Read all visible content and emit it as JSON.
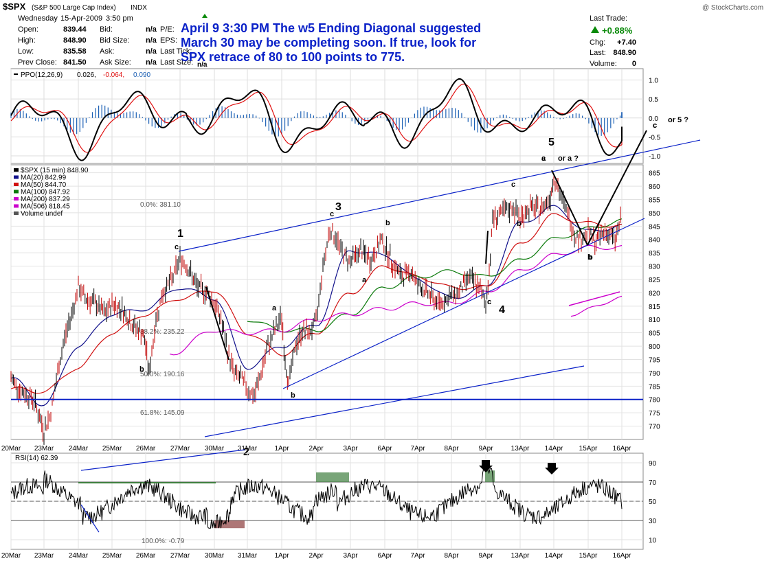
{
  "header": {
    "symbol": "$SPX",
    "name": "(S&P 500 Large Cap Index)",
    "exchange": "INDX",
    "credit": "@ StockCharts.com",
    "date": "Wednesday",
    "date2": "15-Apr-2009",
    "time": "3:50 pm",
    "fields": [
      {
        "label": "Open:",
        "value": "839.44"
      },
      {
        "label": "High:",
        "value": "848.90"
      },
      {
        "label": "Low:",
        "value": "835.58"
      },
      {
        "label": "Prev Close:",
        "value": "841.50"
      }
    ],
    "fields2": [
      {
        "label": "Bid:",
        "value": "n/a"
      },
      {
        "label": "Bid Size:",
        "value": "n/a"
      },
      {
        "label": "Ask:",
        "value": "n/a"
      },
      {
        "label": "Ask Size:",
        "value": "n/a"
      }
    ],
    "fields3": [
      {
        "label": "P/E:"
      },
      {
        "label": "EPS:"
      },
      {
        "label": "Last Tick:"
      },
      {
        "label": "Last Size:",
        "value": "n/a"
      }
    ],
    "last_trade_label": "Last Trade:",
    "change_pct": "+0.88%",
    "chg_label": "Chg:",
    "chg_value": "+7.40",
    "last_label": "Last:",
    "last_value": "848.90",
    "volume_label": "Volume:",
    "volume_value": "0"
  },
  "annotation_note": [
    "April 9 3:30 PM The w5 Ending Diagonal suggested",
    "March 30 may be completing soon. If true, look for",
    "SPX retrace of 80 to 100 points  to 775."
  ],
  "chart_data": [
    {
      "type": "line",
      "panel": "ppo",
      "title": "PPO(12,26,9) 0.026, -0.064, 0.090",
      "legend": [
        "PPO(12,26,9)",
        "0.026,",
        "-0.064,",
        "0.090"
      ],
      "ylim": [
        -1.2,
        1.3
      ],
      "yticks": [
        "1.0",
        "0.5",
        "0.0",
        "-0.5",
        "-1.0"
      ],
      "ytick_values": [
        1.0,
        0.5,
        0.0,
        -0.5,
        -1.0
      ],
      "series": [
        {
          "name": "PPO",
          "color": "#000000"
        },
        {
          "name": "Signal",
          "color": "#e01010"
        },
        {
          "name": "Histogram",
          "color": "#1a5fb4"
        }
      ]
    },
    {
      "type": "line",
      "panel": "price",
      "title": "$SPX (15 min) 848.90",
      "legend": [
        {
          "label": "$SPX (15 min) 848.90",
          "color": "#000000"
        },
        {
          "label": "MA(20) 842.99",
          "color": "#10108a"
        },
        {
          "label": "MA(50) 844.70",
          "color": "#d01010"
        },
        {
          "label": "MA(100) 847.92",
          "color": "#0a7a0a"
        },
        {
          "label": "MA(200) 837.29",
          "color": "#cc00cc"
        },
        {
          "label": "MA(506) 818.45",
          "color": "#cc00cc"
        },
        {
          "label": "Volume undef",
          "color": "#555555"
        }
      ],
      "ylim": [
        765,
        868
      ],
      "yticks": [
        "865",
        "860",
        "855",
        "850",
        "845",
        "840",
        "835",
        "830",
        "825",
        "820",
        "815",
        "810",
        "805",
        "800",
        "795",
        "790",
        "785",
        "780",
        "775",
        "770"
      ],
      "ytick_values": [
        865,
        860,
        855,
        850,
        845,
        840,
        835,
        830,
        825,
        820,
        815,
        810,
        805,
        800,
        795,
        790,
        785,
        780,
        775,
        770
      ],
      "x_categories": [
        "20Mar",
        "23Mar",
        "24Mar",
        "25Mar",
        "26Mar",
        "27Mar",
        "30Mar",
        "31Mar",
        "1Apr",
        "2Apr",
        "3Apr",
        "6Apr",
        "7Apr",
        "8Apr",
        "9Apr",
        "13Apr",
        "14Apr",
        "15Apr",
        "16Apr"
      ],
      "price_path": [
        [
          0,
          788
        ],
        [
          0.3,
          783
        ],
        [
          0.7,
          780
        ],
        [
          0.9,
          772
        ],
        [
          1.0,
          768
        ],
        [
          1.2,
          775
        ],
        [
          1.4,
          790
        ],
        [
          1.6,
          803
        ],
        [
          1.8,
          812
        ],
        [
          2.0,
          822
        ],
        [
          2.2,
          818
        ],
        [
          2.5,
          816
        ],
        [
          2.8,
          812
        ],
        [
          3.0,
          816
        ],
        [
          3.3,
          814
        ],
        [
          3.6,
          808
        ],
        [
          3.9,
          805
        ],
        [
          4.0,
          800
        ],
        [
          4.1,
          790
        ],
        [
          4.3,
          810
        ],
        [
          4.5,
          820
        ],
        [
          4.8,
          826
        ],
        [
          5.0,
          833
        ],
        [
          5.2,
          830
        ],
        [
          5.5,
          822
        ],
        [
          5.8,
          820
        ],
        [
          6.0,
          816
        ],
        [
          6.2,
          810
        ],
        [
          6.4,
          798
        ],
        [
          6.6,
          790
        ],
        [
          6.8,
          788
        ],
        [
          7.0,
          784
        ],
        [
          7.2,
          781
        ],
        [
          7.4,
          790
        ],
        [
          7.6,
          800
        ],
        [
          7.8,
          806
        ],
        [
          8.0,
          811
        ],
        [
          8.1,
          794
        ],
        [
          8.2,
          786
        ],
        [
          8.4,
          800
        ],
        [
          8.6,
          806
        ],
        [
          8.8,
          805
        ],
        [
          9.0,
          809
        ],
        [
          9.2,
          830
        ],
        [
          9.4,
          844
        ],
        [
          9.6,
          840
        ],
        [
          9.8,
          834
        ],
        [
          10.0,
          832
        ],
        [
          10.3,
          836
        ],
        [
          10.6,
          832
        ],
        [
          10.9,
          840
        ],
        [
          11.2,
          832
        ],
        [
          11.5,
          826
        ],
        [
          11.8,
          828
        ],
        [
          12.0,
          823
        ],
        [
          12.3,
          820
        ],
        [
          12.6,
          816
        ],
        [
          12.9,
          818
        ],
        [
          13.2,
          820
        ],
        [
          13.5,
          826
        ],
        [
          13.8,
          822
        ],
        [
          14.0,
          816
        ],
        [
          14.1,
          828
        ],
        [
          14.2,
          848
        ],
        [
          14.5,
          850
        ],
        [
          14.8,
          852
        ],
        [
          15.0,
          848
        ],
        [
          15.3,
          852
        ],
        [
          15.6,
          851
        ],
        [
          15.9,
          856
        ],
        [
          16.0,
          864
        ],
        [
          16.2,
          856
        ],
        [
          16.4,
          850
        ],
        [
          16.6,
          842
        ],
        [
          16.8,
          840
        ],
        [
          17.0,
          843
        ],
        [
          17.2,
          839
        ],
        [
          17.5,
          843
        ],
        [
          17.8,
          840
        ],
        [
          18.0,
          849
        ]
      ],
      "moving_averages": [
        {
          "name": "MA(20)",
          "color": "#10108a",
          "values": [
            [
              0,
              788
            ],
            [
              1,
              778
            ],
            [
              2,
              800
            ],
            [
              3,
              812
            ],
            [
              4,
              814
            ],
            [
              5,
              822
            ],
            [
              6,
              818
            ],
            [
              7,
              792
            ],
            [
              8,
              800
            ],
            [
              9,
              808
            ],
            [
              10,
              836
            ],
            [
              11,
              834
            ],
            [
              12,
              825
            ],
            [
              13,
              818
            ],
            [
              14,
              822
            ],
            [
              15,
              846
            ],
            [
              16,
              852
            ],
            [
              17,
              843
            ],
            [
              18,
              845
            ]
          ]
        },
        {
          "name": "MA(50)",
          "color": "#d01010",
          "values": [
            [
              0,
              784
            ],
            [
              1,
              783
            ],
            [
              2,
              792
            ],
            [
              3,
              805
            ],
            [
              4,
              812
            ],
            [
              5,
              818
            ],
            [
              6,
              821
            ],
            [
              7,
              805
            ],
            [
              8,
              797
            ],
            [
              9,
              805
            ],
            [
              10,
              820
            ],
            [
              11,
              830
            ],
            [
              12,
              826
            ],
            [
              13,
              822
            ],
            [
              14,
              822
            ],
            [
              15,
              838
            ],
            [
              16,
              849
            ],
            [
              17,
              846
            ],
            [
              18,
              845
            ]
          ]
        },
        {
          "name": "MA(100)",
          "color": "#0a7a0a",
          "values": [
            [
              7,
              810
            ],
            [
              8,
              806
            ],
            [
              9,
              806
            ],
            [
              10,
              812
            ],
            [
              11,
              822
            ],
            [
              12,
              826
            ],
            [
              13,
              828
            ],
            [
              14,
              826
            ],
            [
              15,
              832
            ],
            [
              16,
              840
            ],
            [
              17,
              844
            ],
            [
              18,
              847
            ]
          ]
        },
        {
          "name": "MA(200)",
          "color": "#cc00cc",
          "values": [
            [
              4.7,
              797
            ],
            [
              6,
              806
            ],
            [
              7,
              805
            ],
            [
              8,
              806
            ],
            [
              9,
              810
            ],
            [
              10,
              812
            ],
            [
              11,
              814
            ],
            [
              12,
              816
            ],
            [
              13,
              816
            ],
            [
              14,
              820
            ],
            [
              15,
              828
            ],
            [
              16,
              834
            ],
            [
              17,
              837
            ],
            [
              18,
              837
            ]
          ]
        },
        {
          "name": "MA(506)",
          "color": "#cc00cc",
          "values": [
            [
              16.5,
              812
            ],
            [
              18,
              818
            ]
          ]
        }
      ],
      "fib_labels": [
        "0.0%: 381.10",
        "38.2%: 235.22",
        "50.0%: 190.16",
        "61.8%: 145.09",
        "100.0%: -0.79"
      ],
      "wave_labels": [
        "1",
        "2",
        "3",
        "4",
        "5",
        "or 5 ?",
        "or a ?"
      ],
      "sub_labels": [
        "c",
        "b",
        "c",
        "b",
        "a",
        "a",
        "b",
        "c",
        "b",
        "c",
        "a",
        "b",
        "c",
        "b",
        "c",
        "c",
        "c"
      ],
      "support_level": 780
    },
    {
      "type": "line",
      "panel": "rsi",
      "title": "RSI(14) 62.39",
      "ylim": [
        0,
        100
      ],
      "yticks": [
        "90",
        "70",
        "50",
        "30",
        "10"
      ],
      "ytick_values": [
        90,
        70,
        50,
        30,
        10
      ],
      "overbought": 70,
      "oversold": 30
    }
  ]
}
